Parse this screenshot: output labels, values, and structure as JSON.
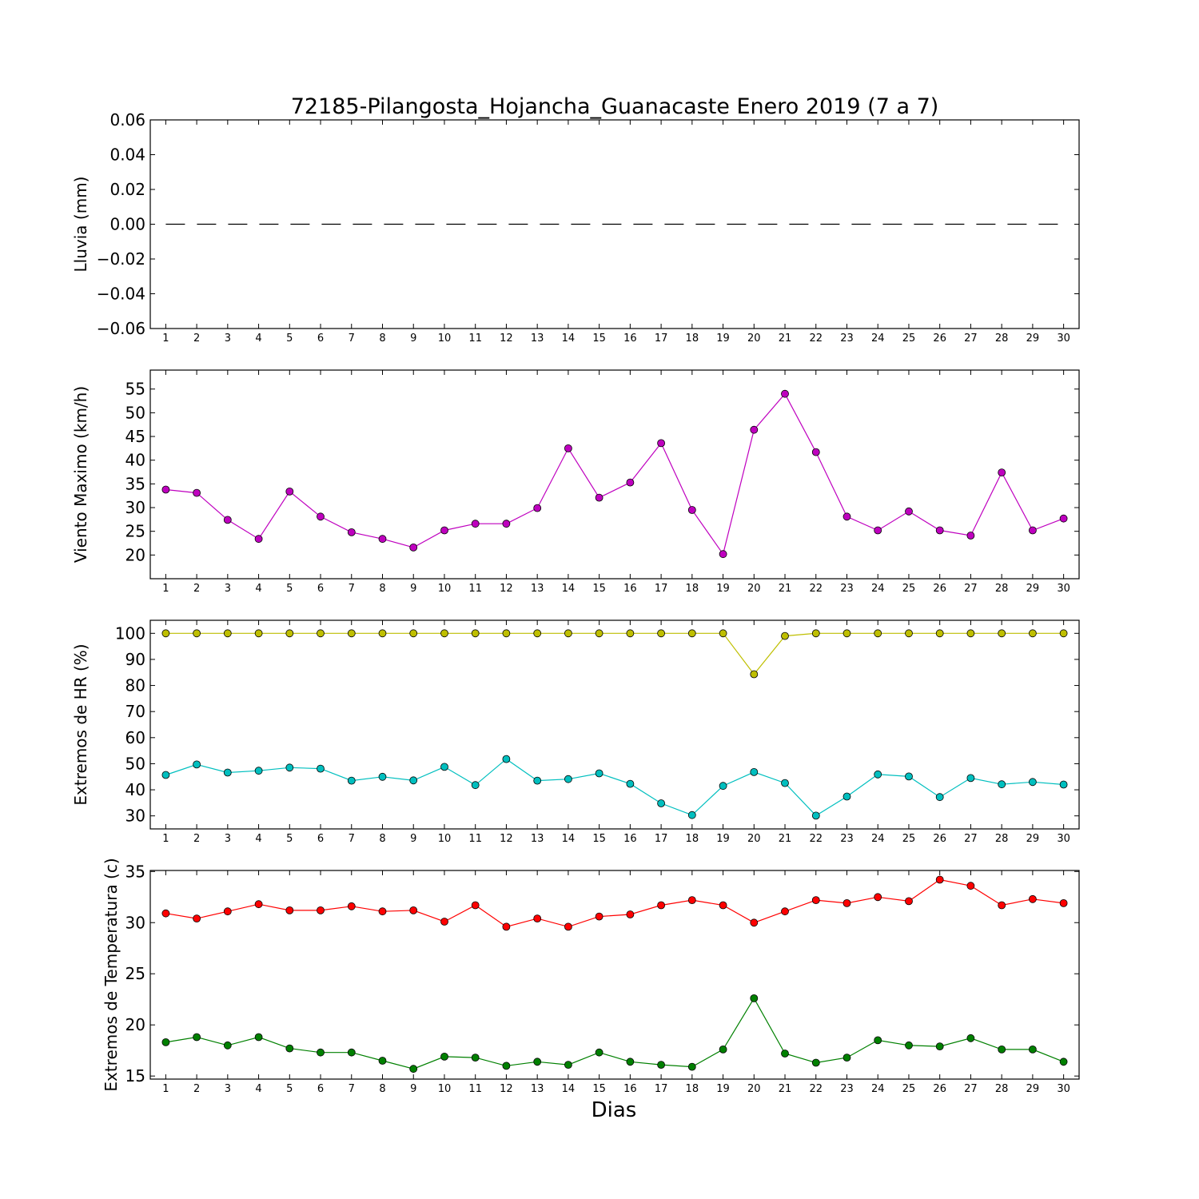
{
  "figure": {
    "title": "72185-Pilangosta_Hojancha_Guanacaste Enero 2019  (7 a 7)",
    "xlabel": "Dias"
  },
  "chart_data": [
    {
      "type": "line",
      "ylabel": "Lluvia (mm)",
      "x": [
        1,
        2,
        3,
        4,
        5,
        6,
        7,
        8,
        9,
        10,
        11,
        12,
        13,
        14,
        15,
        16,
        17,
        18,
        19,
        20,
        21,
        22,
        23,
        24,
        25,
        26,
        27,
        28,
        29,
        30
      ],
      "ylim": [
        -0.06,
        0.06
      ],
      "yticks": [
        -0.06,
        -0.04,
        -0.02,
        0.0,
        0.02,
        0.04,
        0.06
      ],
      "ytick_labels": [
        "−0.06",
        "−0.04",
        "−0.02",
        "0.00",
        "0.02",
        "0.04",
        "0.06"
      ],
      "series": [
        {
          "color": "#000000",
          "style": "dashed",
          "markers": false,
          "values": [
            0,
            0,
            0,
            0,
            0,
            0,
            0,
            0,
            0,
            0,
            0,
            0,
            0,
            0,
            0,
            0,
            0,
            0,
            0,
            0,
            0,
            0,
            0,
            0,
            0,
            0,
            0,
            0,
            0,
            0
          ]
        }
      ]
    },
    {
      "type": "line",
      "ylabel": "Viento Maximo (km/h)",
      "x": [
        1,
        2,
        3,
        4,
        5,
        6,
        7,
        8,
        9,
        10,
        11,
        12,
        13,
        14,
        15,
        16,
        17,
        18,
        19,
        20,
        21,
        22,
        23,
        24,
        25,
        26,
        27,
        28,
        29,
        30
      ],
      "ylim": [
        15,
        59
      ],
      "yticks": [
        20,
        25,
        30,
        35,
        40,
        45,
        50,
        55
      ],
      "ytick_labels": [
        "20",
        "25",
        "30",
        "35",
        "40",
        "45",
        "50",
        "55"
      ],
      "series": [
        {
          "color": "#bf00bf",
          "style": "solid",
          "markers": true,
          "values": [
            33.8,
            33.1,
            27.4,
            23.4,
            33.4,
            28.1,
            24.8,
            23.4,
            21.6,
            25.2,
            26.6,
            26.6,
            29.9,
            42.5,
            32.1,
            35.3,
            43.6,
            29.5,
            20.2,
            46.4,
            54.0,
            41.7,
            28.1,
            25.2,
            29.2,
            25.2,
            24.1,
            37.4,
            25.2,
            27.7
          ]
        }
      ]
    },
    {
      "type": "line",
      "ylabel": "Extremos de HR (%)",
      "x": [
        1,
        2,
        3,
        4,
        5,
        6,
        7,
        8,
        9,
        10,
        11,
        12,
        13,
        14,
        15,
        16,
        17,
        18,
        19,
        20,
        21,
        22,
        23,
        24,
        25,
        26,
        27,
        28,
        29,
        30
      ],
      "ylim": [
        25,
        105
      ],
      "yticks": [
        30,
        40,
        50,
        60,
        70,
        80,
        90,
        100
      ],
      "ytick_labels": [
        "30",
        "40",
        "50",
        "60",
        "70",
        "80",
        "90",
        "100"
      ],
      "series": [
        {
          "color": "#bfbf00",
          "style": "solid",
          "markers": true,
          "values": [
            100,
            100,
            100,
            100,
            100,
            100,
            100,
            100,
            100,
            100,
            100,
            100,
            100,
            100,
            100,
            100,
            100,
            100,
            100,
            84.3,
            99,
            100,
            100,
            100,
            100,
            100,
            100,
            100,
            100,
            100
          ]
        },
        {
          "color": "#00bfbf",
          "style": "solid",
          "markers": true,
          "values": [
            45.7,
            49.7,
            46.6,
            47.3,
            48.5,
            48.1,
            43.5,
            45.0,
            43.6,
            48.8,
            41.8,
            51.8,
            43.5,
            44.1,
            46.3,
            42.3,
            34.8,
            30.3,
            41.5,
            46.8,
            42.6,
            30.1,
            37.4,
            45.9,
            45.1,
            37.2,
            44.5,
            42.1,
            43.0,
            42.0
          ]
        }
      ]
    },
    {
      "type": "line",
      "ylabel": "Extremos de Temperatura (c)",
      "x": [
        1,
        2,
        3,
        4,
        5,
        6,
        7,
        8,
        9,
        10,
        11,
        12,
        13,
        14,
        15,
        16,
        17,
        18,
        19,
        20,
        21,
        22,
        23,
        24,
        25,
        26,
        27,
        28,
        29,
        30
      ],
      "ylim": [
        14.7,
        35.1
      ],
      "yticks": [
        15,
        20,
        25,
        30,
        35
      ],
      "ytick_labels": [
        "15",
        "20",
        "25",
        "30",
        "35"
      ],
      "series": [
        {
          "color": "#ff0000",
          "style": "solid",
          "markers": true,
          "values": [
            30.9,
            30.4,
            31.1,
            31.8,
            31.2,
            31.2,
            31.6,
            31.1,
            31.2,
            30.1,
            31.7,
            29.6,
            30.4,
            29.6,
            30.6,
            30.8,
            31.7,
            32.2,
            31.7,
            30.0,
            31.1,
            32.2,
            31.9,
            32.5,
            32.1,
            34.2,
            33.6,
            31.7,
            32.3,
            31.9
          ]
        },
        {
          "color": "#008000",
          "style": "solid",
          "markers": true,
          "values": [
            18.3,
            18.8,
            18.0,
            18.8,
            17.7,
            17.3,
            17.3,
            16.5,
            15.7,
            16.9,
            16.8,
            16.0,
            16.4,
            16.1,
            17.3,
            16.4,
            16.1,
            15.9,
            17.6,
            22.6,
            17.2,
            16.3,
            16.8,
            18.5,
            18.0,
            17.9,
            18.7,
            17.6,
            17.6,
            16.4
          ]
        }
      ]
    }
  ]
}
